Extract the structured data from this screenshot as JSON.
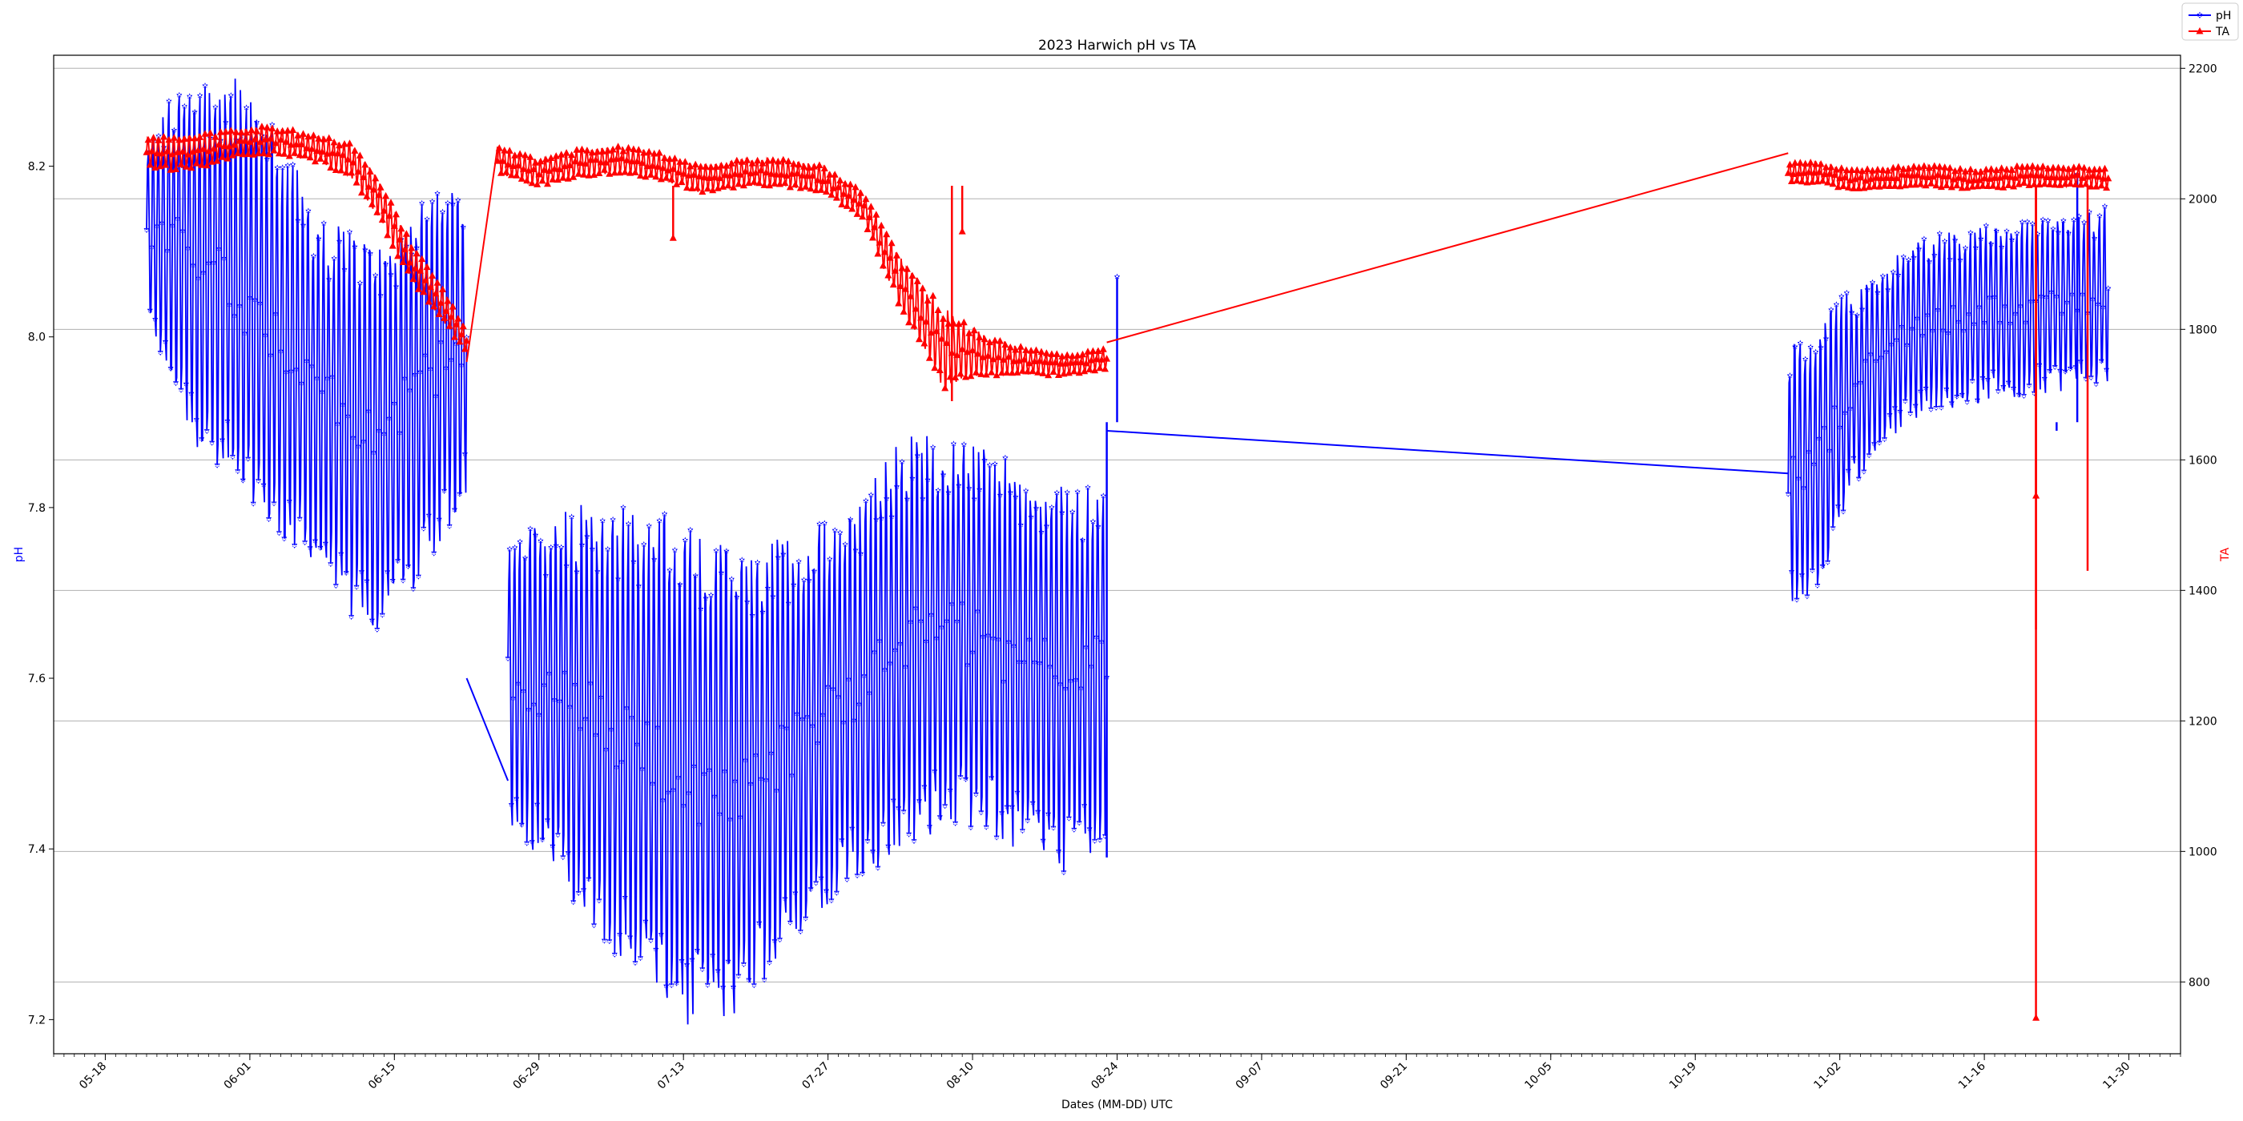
{
  "chart_data": {
    "type": "line",
    "title": "2023 Harwich pH vs TA",
    "xlabel": "Dates (MM-DD) UTC",
    "ylabel_left": "pH",
    "ylabel_right": "TA",
    "x_ticks": [
      "05-18",
      "06-01",
      "06-15",
      "06-29",
      "07-13",
      "07-27",
      "08-10",
      "08-24",
      "09-07",
      "09-21",
      "10-05",
      "10-19",
      "11-02",
      "11-16",
      "11-30"
    ],
    "x_range": [
      "2023-05-13",
      "2023-12-05"
    ],
    "ylim_left": [
      7.16,
      8.33
    ],
    "ylim_right": [
      690,
      2220
    ],
    "y_ticks_left": [
      7.2,
      7.4,
      7.6,
      7.8,
      8.0,
      8.2
    ],
    "y_ticks_right": [
      800,
      1000,
      1200,
      1400,
      1600,
      1800,
      2000,
      2200
    ],
    "grid": "horizontal, right axis",
    "legend_position": "top-right",
    "series": [
      {
        "name": "pH",
        "axis": "left",
        "color": "#0000ff",
        "marker": "star",
        "segments": [
          {
            "start": "2023-05-22",
            "end": "2023-06-22",
            "mid": [
              8.12,
              8.11,
              8.08,
              8.06,
              8.02,
              7.98,
              7.93,
              7.9,
              7.88,
              7.92,
              7.96,
              8.0
            ],
            "amp": [
              0.1,
              0.18,
              0.22,
              0.24,
              0.24,
              0.22,
              0.2,
              0.22,
              0.22,
              0.22,
              0.2,
              0.18
            ],
            "period_days": 0.5
          },
          {
            "start": "2023-06-26",
            "end": "2023-08-23",
            "mid": [
              7.6,
              7.58,
              7.56,
              7.53,
              7.5,
              7.47,
              7.48,
              7.52,
              7.56,
              7.6,
              7.64,
              7.66,
              7.64,
              7.62,
              7.6,
              7.62
            ],
            "amp": [
              0.16,
              0.2,
              0.24,
              0.26,
              0.28,
              0.28,
              0.26,
              0.24,
              0.22,
              0.22,
              0.24,
              0.22,
              0.22,
              0.22,
              0.22,
              0.2
            ],
            "period_days": 0.5
          },
          {
            "start": "2023-10-28",
            "end": "2023-11-28",
            "mid": [
              7.83,
              7.85,
              7.93,
              7.97,
              8.0,
              8.02,
              8.02,
              8.03,
              8.03,
              8.04,
              8.04,
              8.05
            ],
            "amp": [
              0.15,
              0.16,
              0.12,
              0.1,
              0.1,
              0.1,
              0.1,
              0.1,
              0.1,
              0.1,
              0.1,
              0.1
            ],
            "period_days": 0.5
          }
        ],
        "connectors": [
          {
            "from": [
              "2023-06-22",
              7.6
            ],
            "to": [
              "2023-06-26",
              7.48
            ]
          },
          {
            "from": [
              "2023-08-23",
              7.89
            ],
            "to": [
              "2023-10-28",
              7.84
            ]
          }
        ],
        "spikes": [
          [
            "2023-08-24",
            8.07
          ],
          [
            "2023-08-23",
            7.39
          ],
          [
            "2023-11-25",
            8.19
          ],
          [
            "2023-11-23",
            7.89
          ]
        ]
      },
      {
        "name": "TA",
        "axis": "right",
        "color": "#ff0000",
        "marker": "triangle",
        "segments": [
          {
            "start": "2023-05-22",
            "end": "2023-06-22",
            "mid": [
              2070,
              2070,
              2075,
              2085,
              2090,
              2085,
              2075,
              2060,
              2000,
              1910,
              1850,
              1780
            ],
            "amp": [
              25,
              25,
              25,
              20,
              20,
              20,
              20,
              25,
              30,
              30,
              25,
              20
            ],
            "period_days": 0.5
          },
          {
            "start": "2023-06-25",
            "end": "2023-08-23",
            "mid": [
              2060,
              2040,
              2055,
              2060,
              2050,
              2030,
              2040,
              2040,
              2030,
              1990,
              1860,
              1770,
              1760,
              1750,
              1745,
              1755
            ],
            "amp": [
              20,
              20,
              20,
              20,
              20,
              20,
              20,
              20,
              20,
              20,
              40,
              60,
              30,
              20,
              15,
              15
            ],
            "period_days": 0.5
          },
          {
            "start": "2023-10-28",
            "end": "2023-11-28",
            "mid": [
              2040,
              2040,
              2030,
              2030,
              2035,
              2035,
              2030,
              2030,
              2035,
              2035,
              2035,
              2030
            ],
            "amp": [
              15,
              15,
              15,
              15,
              15,
              15,
              15,
              15,
              15,
              15,
              15,
              15
            ],
            "period_days": 0.5
          }
        ],
        "connectors": [
          {
            "from": [
              "2023-06-22",
              1750
            ],
            "to": [
              "2023-06-25",
              2080
            ]
          },
          {
            "from": [
              "2023-08-23",
              1780
            ],
            "to": [
              "2023-10-28",
              2070
            ]
          }
        ],
        "spikes": [
          [
            "2023-11-21",
            745
          ],
          [
            "2023-11-21",
            1340
          ],
          [
            "2023-11-21",
            1545
          ],
          [
            "2023-11-26",
            1430
          ],
          [
            "2023-07-12",
            1940
          ],
          [
            "2023-08-08",
            1690
          ],
          [
            "2023-08-09",
            1950
          ]
        ]
      }
    ]
  }
}
